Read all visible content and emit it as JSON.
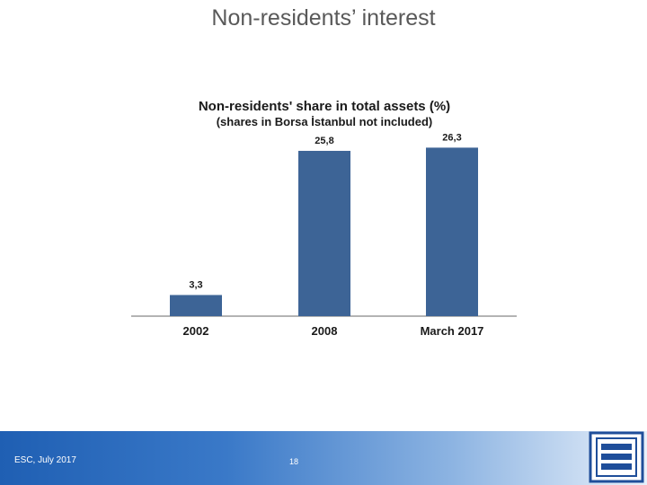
{
  "slide": {
    "title": "Non-residents’ interest",
    "footer_left": "ESC, July 2017",
    "page_number": "18"
  },
  "colors": {
    "bar": "#3d6496",
    "baseline": "#9a9a9a",
    "text": "#1a1a1a"
  },
  "chart_data": {
    "type": "bar",
    "title": "Non-residents' share in total assets (%)",
    "subtitle": "(shares in Borsa İstanbul not included)",
    "categories": [
      "2002",
      "2008",
      "March 2017"
    ],
    "values": [
      3.3,
      25.8,
      26.3
    ],
    "value_labels": [
      "3,3",
      "25,8",
      "26,3"
    ],
    "ylim": [
      0,
      30
    ],
    "grid": false,
    "legend": "none"
  }
}
